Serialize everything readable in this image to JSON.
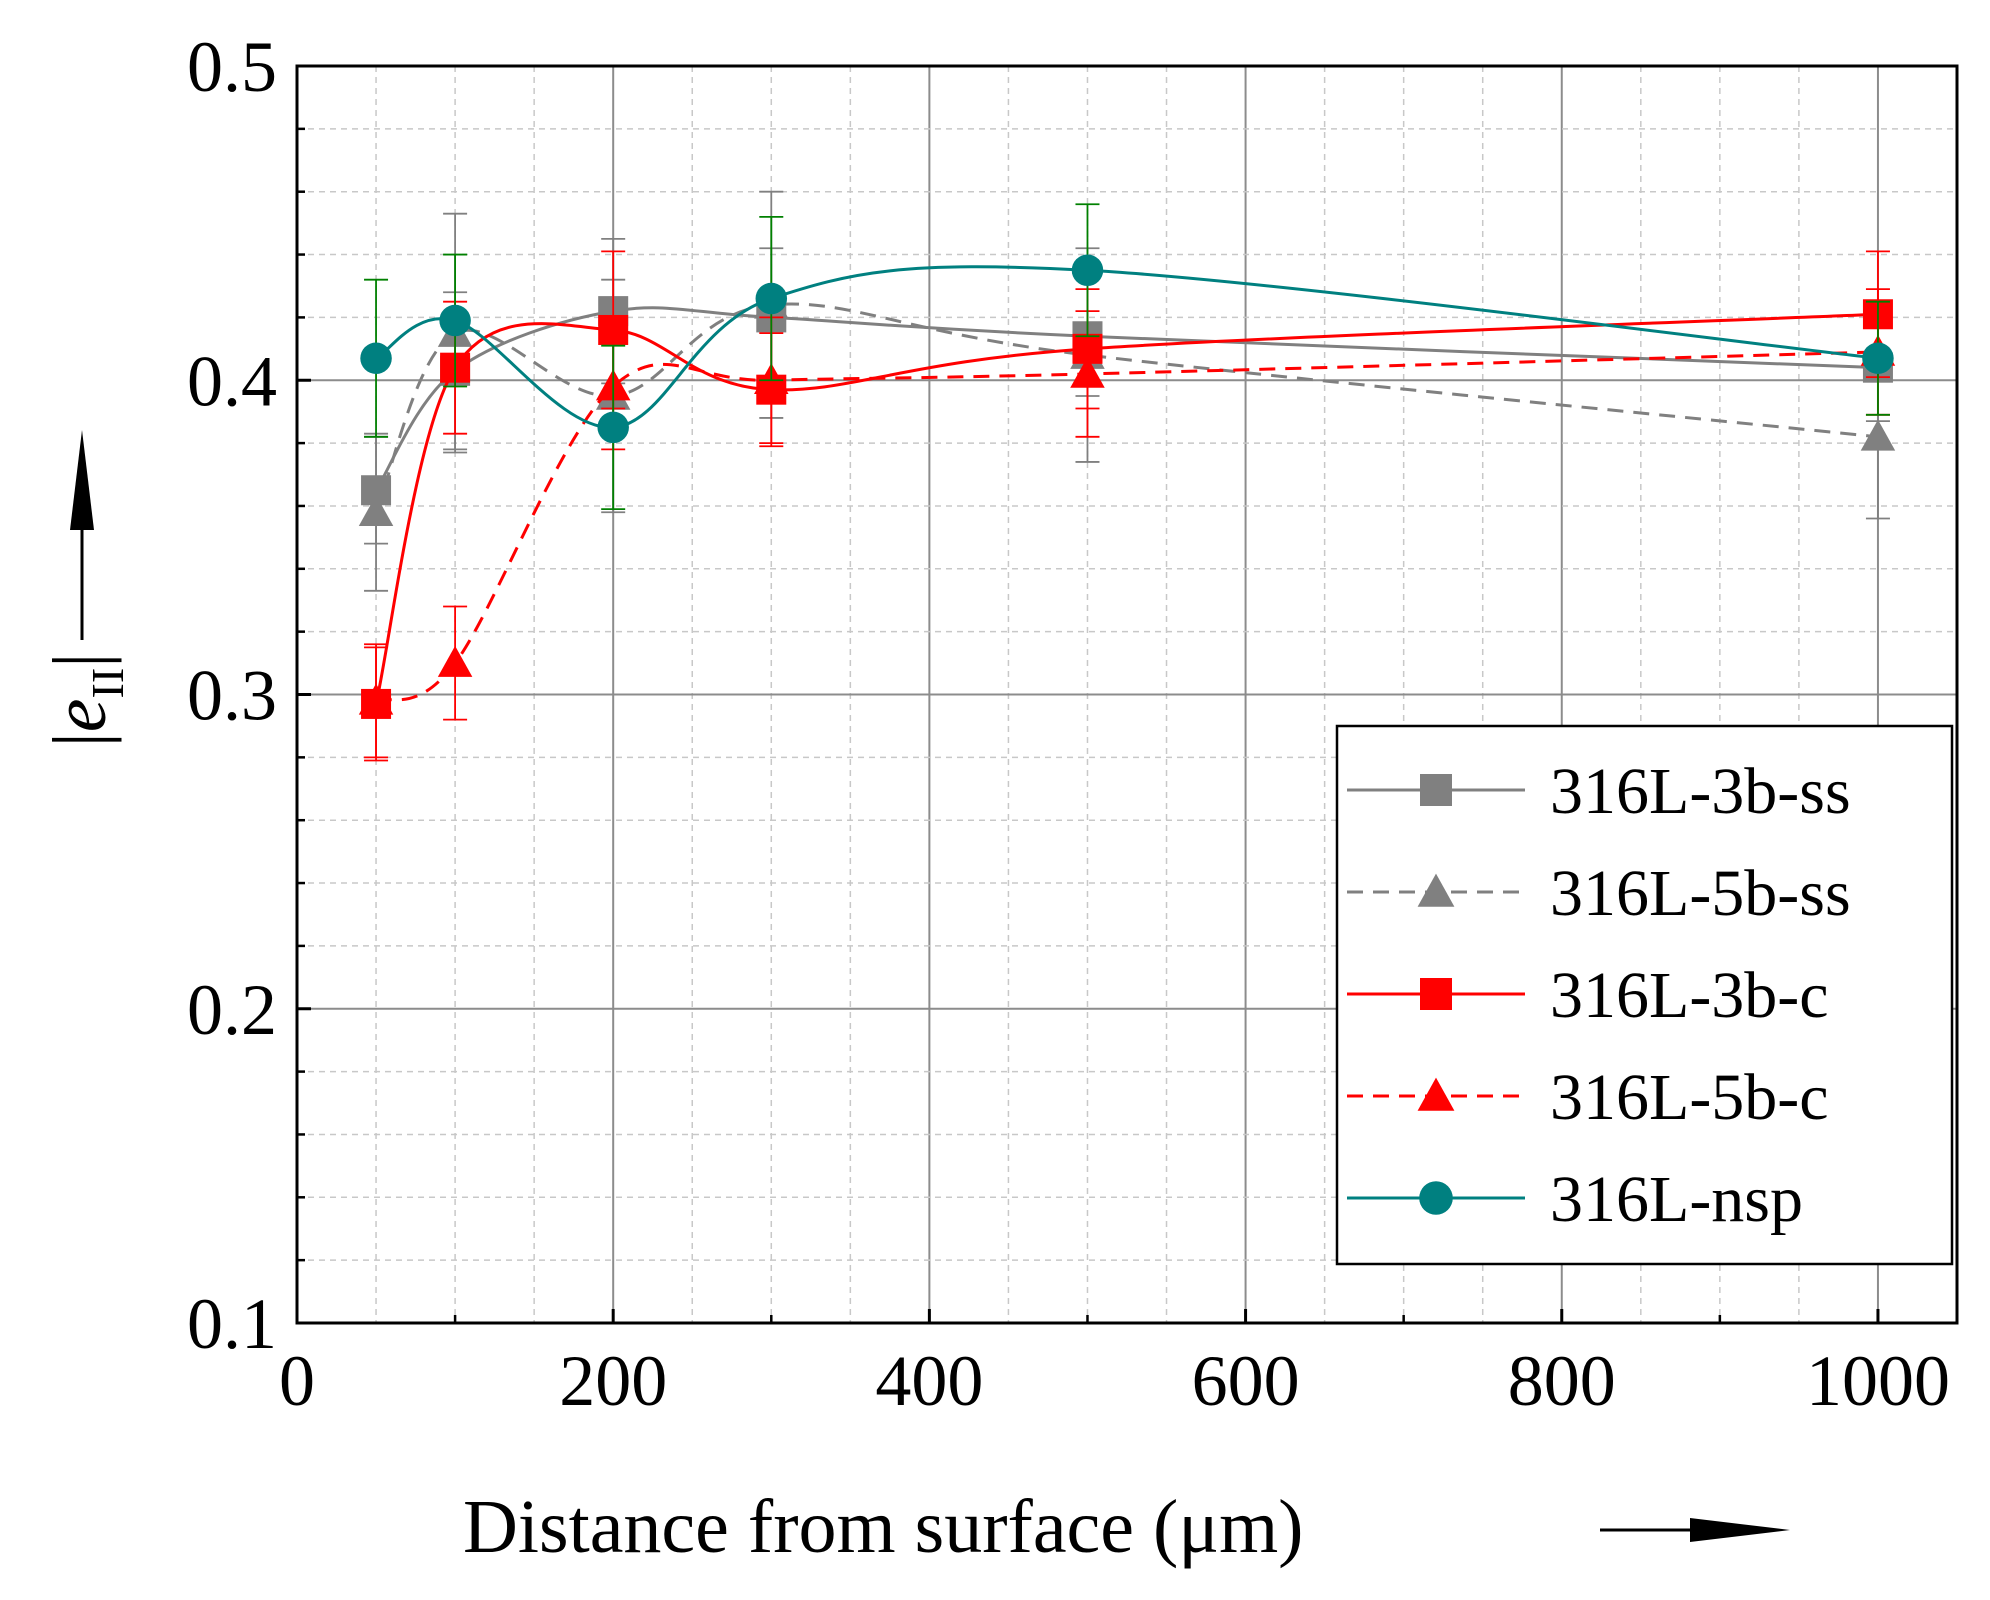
{
  "chart_data": {
    "type": "line",
    "xlabel": "Distance from surface (μm)",
    "ylabel_symbol": "e",
    "ylabel_subscript": "II",
    "xlim": [
      0,
      1050
    ],
    "ylim": [
      0.1,
      0.5
    ],
    "xticks": [
      0,
      200,
      400,
      600,
      800,
      1000
    ],
    "xtick_labels": [
      "0",
      "200",
      "400",
      "600",
      "800",
      "1000"
    ],
    "yticks": [
      0.1,
      0.2,
      0.3,
      0.4,
      0.5
    ],
    "ytick_labels": [
      "0.1",
      "0.2",
      "0.3",
      "0.4",
      "0.5"
    ],
    "grid": true,
    "legend_position": "bottom-right",
    "x": [
      50,
      100,
      200,
      300,
      500,
      1000
    ],
    "series": [
      {
        "name": "316L-3b-ss",
        "color": "#808080",
        "marker": "square",
        "dash": "solid",
        "values": [
          0.365,
          0.403,
          0.422,
          0.42,
          0.414,
          0.404
        ],
        "errors": [
          0.017,
          0.025,
          0.023,
          0.022,
          0.019,
          0.017
        ]
      },
      {
        "name": "316L-5b-ss",
        "color": "#808080",
        "marker": "triangle",
        "dash": "dashed",
        "values": [
          0.358,
          0.415,
          0.395,
          0.424,
          0.408,
          0.382
        ],
        "errors": [
          0.025,
          0.038,
          0.037,
          0.036,
          0.034,
          0.026
        ]
      },
      {
        "name": "316L-3b-c",
        "color": "#ff0000",
        "marker": "square",
        "dash": "solid",
        "values": [
          0.297,
          0.404,
          0.416,
          0.397,
          0.41,
          0.421
        ],
        "errors": [
          0.018,
          0.021,
          0.025,
          0.018,
          0.019,
          0.02
        ]
      },
      {
        "name": "316L-5b-c",
        "color": "#ff0000",
        "marker": "triangle",
        "dash": "dashed",
        "values": [
          0.298,
          0.31,
          0.398,
          0.4,
          0.402,
          0.409
        ],
        "errors": [
          0.018,
          0.018,
          0.02,
          0.02,
          0.02,
          0.02
        ]
      },
      {
        "name": "316L-nsp",
        "color": "#008080",
        "marker": "circle",
        "dash": "solid",
        "values": [
          0.407,
          0.419,
          0.385,
          0.426,
          0.435,
          0.407
        ],
        "errors": [
          0.025,
          0.021,
          0.026,
          0.026,
          0.021,
          0.018
        ]
      }
    ]
  }
}
